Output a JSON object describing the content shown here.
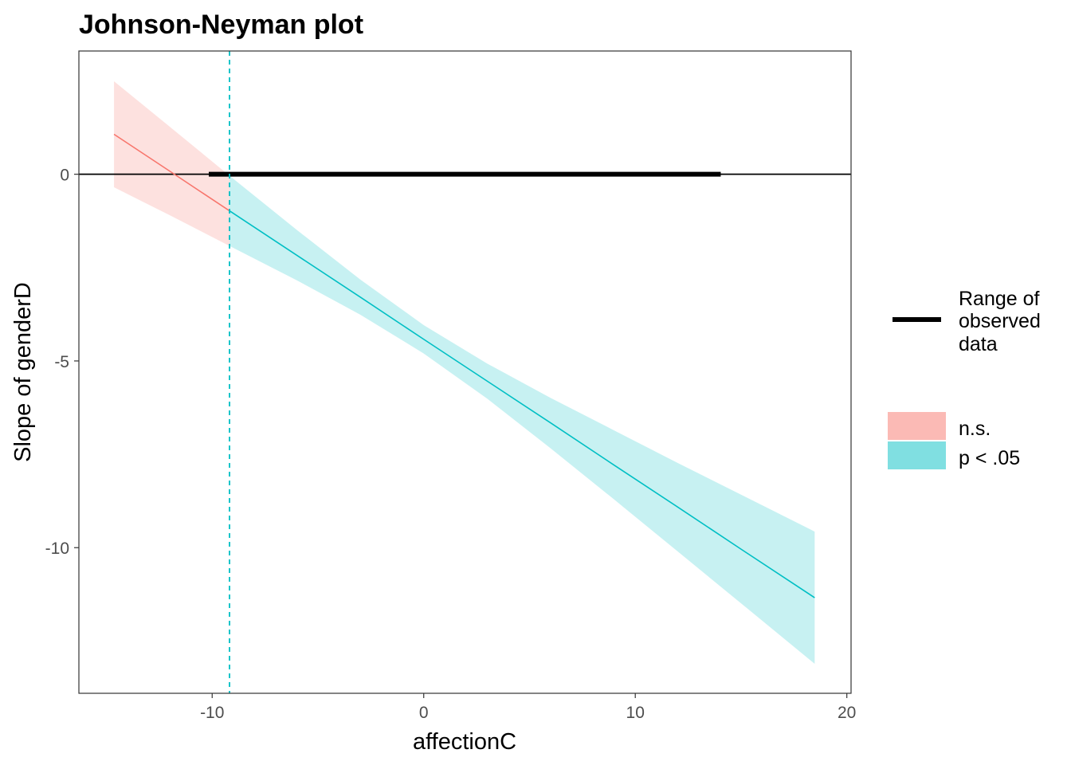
{
  "chart_data": {
    "type": "line",
    "title": "Johnson-Neyman plot",
    "xlabel": "affectionC",
    "ylabel": "Slope of genderD",
    "xlim": [
      -16.3,
      20.2
    ],
    "ylim": [
      -13.9,
      3.3
    ],
    "x_ticks": [
      -10,
      0,
      10,
      20
    ],
    "y_ticks": [
      0,
      -5,
      -10
    ],
    "x_tick_labels": [
      "-10",
      "0",
      "10",
      "20"
    ],
    "y_tick_labels": [
      "0",
      "-5",
      "-10"
    ],
    "grid": false,
    "johnson_neyman_point": -9.18,
    "reference_line_y": 0,
    "observed_range": [
      -10.16,
      14.04
    ],
    "points": [
      {
        "x": -14.64,
        "slope": 1.07,
        "lower": -0.35,
        "upper": 2.49
      },
      {
        "x": -12,
        "slope": 0.08,
        "lower": -1.1,
        "upper": 1.27
      },
      {
        "x": -9.18,
        "slope": -0.98,
        "lower": -1.92,
        "upper": -0.04
      },
      {
        "x": -6,
        "slope": -2.17,
        "lower": -2.84,
        "upper": -1.49
      },
      {
        "x": -3,
        "slope": -3.29,
        "lower": -3.76,
        "upper": -2.82
      },
      {
        "x": 0,
        "slope": -4.42,
        "lower": -4.8,
        "upper": -4.04
      },
      {
        "x": 3,
        "slope": -5.54,
        "lower": -6.01,
        "upper": -5.07
      },
      {
        "x": 6,
        "slope": -6.66,
        "lower": -7.34,
        "upper": -5.99
      },
      {
        "x": 9,
        "slope": -7.79,
        "lower": -8.71,
        "upper": -6.86
      },
      {
        "x": 12,
        "slope": -8.91,
        "lower": -10.1,
        "upper": -7.73
      },
      {
        "x": 15,
        "slope": -10.04,
        "lower": -11.49,
        "upper": -8.58
      },
      {
        "x": 18.48,
        "slope": -11.34,
        "lower": -13.11,
        "upper": -9.57
      }
    ],
    "legend": {
      "position": "right",
      "range_label": "Range of observed data",
      "range_label_lines": [
        "Range of",
        "observed",
        "data"
      ],
      "entries": [
        {
          "label": "n.s.",
          "color": "#F8766D",
          "fill": "#FBBAB5"
        },
        {
          "label": "p < .05",
          "color": "#00BFC4",
          "fill": "#80DFE1"
        }
      ]
    }
  }
}
